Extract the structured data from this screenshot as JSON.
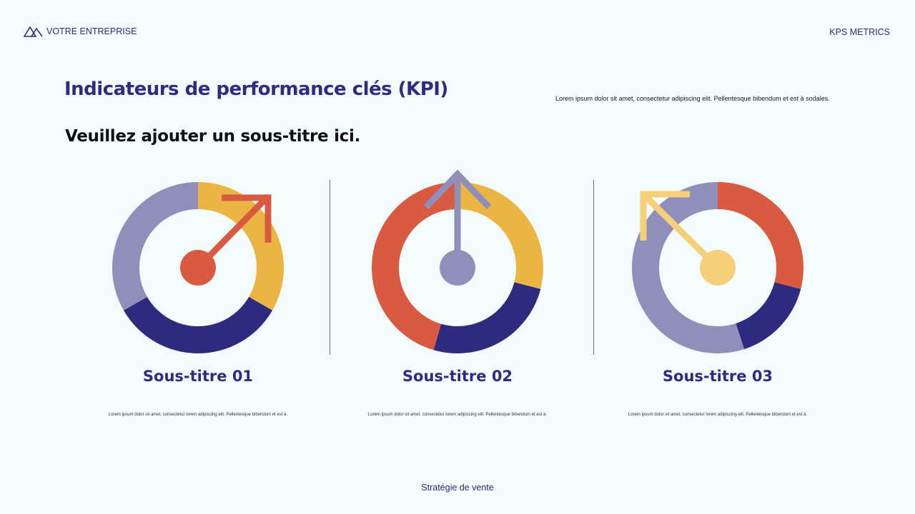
{
  "header": {
    "brand": "VOTRE ENTREPRISE",
    "brand_icon": "mountains-logo-icon",
    "right_label": "KPS METRICS"
  },
  "title": "Indicateurs de performance clés (KPI)",
  "description": "Lorem ipsum dolor sit amet, consectetur adipiscing elit. Pellentesque bibendum et est à sodales.",
  "subtitle": "Veuillez ajouter un sous-titre ici.",
  "colors": {
    "navy": "#2e2a7e",
    "yellow": "#eab542",
    "red": "#d85a40",
    "lavender": "#8f8fba",
    "light_yellow": "#f6cf7a"
  },
  "columns": [
    {
      "title": "Sous-titre 01",
      "text": "Lorem ipsum dolor sit amet, consectetur lorem adipiscing elit. Pellentesque bibendum et est à.",
      "segments": [
        {
          "color": "#eab542",
          "fraction": 0.333
        },
        {
          "color": "#2e2a7e",
          "fraction": 0.334
        },
        {
          "color": "#8f8fba",
          "fraction": 0.333
        }
      ],
      "arrow": {
        "direction": "up-right",
        "color": "#d85a40"
      }
    },
    {
      "title": "Sous-titre 02",
      "text": "Lorem ipsum dolor sit amet, consectetur lorem adipiscing elit. Pellentesque bibendum et est à.",
      "segments": [
        {
          "color": "#eab542",
          "fraction": 0.29
        },
        {
          "color": "#2e2a7e",
          "fraction": 0.255
        },
        {
          "color": "#d85a40",
          "fraction": 0.455
        }
      ],
      "arrow": {
        "direction": "up",
        "color": "#8f8fba"
      }
    },
    {
      "title": "Sous-titre 03",
      "text": "Lorem ipsum dolor sit amet, consectetur lorem adipiscing elit. Pellentesque bibendum et est à.",
      "segments": [
        {
          "color": "#d85a40",
          "fraction": 0.29
        },
        {
          "color": "#2e2a7e",
          "fraction": 0.16
        },
        {
          "color": "#8f8fba",
          "fraction": 0.55
        }
      ],
      "arrow": {
        "direction": "up-left",
        "color": "#f6cf7a"
      }
    }
  ],
  "footer": "Stratégie de vente"
}
